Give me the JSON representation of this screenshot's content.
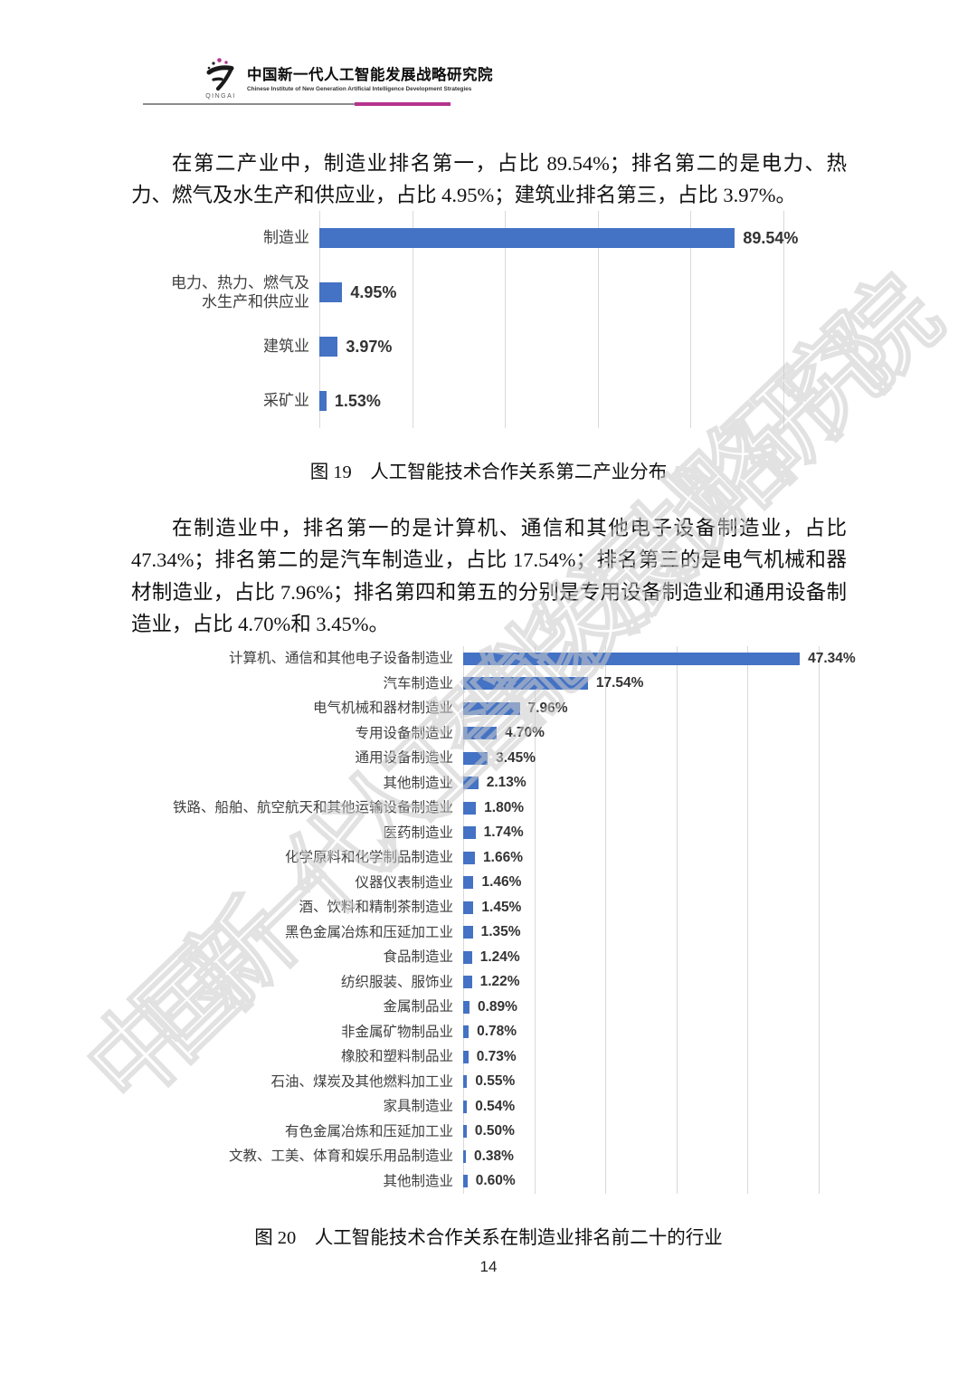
{
  "header": {
    "logo_word": "QINGAI",
    "org_cn": "中国新一代人工智能发展战略研究院",
    "org_en": "Chinese Institute of New Generation Artificial Intelligence Development Strategies",
    "accent_color": "#b5338f"
  },
  "watermark": {
    "text": "中国新一代人工智能发展战略研究院"
  },
  "body": {
    "paragraph1": "在第二产业中，制造业排名第一，占比 89.54%；排名第二的是电力、热力、燃气及水生产和供应业，占比 4.95%；建筑业排名第三，占比 3.97%。",
    "paragraph2": "在制造业中，排名第一的是计算机、通信和其他电子设备制造业，占比 47.34%；排名第二的是汽车制造业，占比 17.54%；排名第三的是电气机械和器材制造业，占比 7.96%；排名第四和第五的分别是专用设备制造业和通用设备制造业，占比 4.70%和 3.45%。"
  },
  "figures": {
    "fig19_caption": "图 19　人工智能技术合作关系第二产业分布",
    "fig20_caption": "图 20　人工智能技术合作关系在制造业排名前二十的行业"
  },
  "page": {
    "number": "14"
  },
  "chart_data": [
    {
      "type": "bar",
      "orientation": "horizontal",
      "figure": "图 19",
      "title": "人工智能技术合作关系第二产业分布",
      "categories": [
        "制造业",
        "电力、热力、燃气及\n水生产和供应业",
        "建筑业",
        "采矿业"
      ],
      "values": [
        89.54,
        4.95,
        3.97,
        1.53
      ],
      "labels": [
        "89.54%",
        "4.95%",
        "3.97%",
        "1.53%"
      ],
      "xlim": [
        0,
        100
      ],
      "grid_step": 20,
      "grid": true,
      "legend": "none",
      "bar_color": "#4472c4",
      "gridline_color": "#d9d9d9"
    },
    {
      "type": "bar",
      "orientation": "horizontal",
      "figure": "图 20",
      "title": "人工智能技术合作关系在制造业排名前二十的行业",
      "categories": [
        "计算机、通信和其他电子设备制造业",
        "汽车制造业",
        "电气机械和器材制造业",
        "专用设备制造业",
        "通用设备制造业",
        "其他制造业",
        "铁路、船舶、航空航天和其他运输设备制造业",
        "医药制造业",
        "化学原料和化学制品制造业",
        "仪器仪表制造业",
        "酒、饮料和精制茶制造业",
        "黑色金属冶炼和压延加工业",
        "食品制造业",
        "纺织服装、服饰业",
        "金属制品业",
        "非金属矿物制品业",
        "橡胶和塑料制品业",
        "石油、煤炭及其他燃料加工业",
        "家具制造业",
        "有色金属冶炼和压延加工业",
        "文教、工美、体育和娱乐用品制造业",
        "其他制造业"
      ],
      "values": [
        47.34,
        17.54,
        7.96,
        4.7,
        3.45,
        2.13,
        1.8,
        1.74,
        1.66,
        1.46,
        1.45,
        1.35,
        1.24,
        1.22,
        0.89,
        0.78,
        0.73,
        0.55,
        0.54,
        0.5,
        0.38,
        0.6
      ],
      "labels": [
        "47.34%",
        "17.54%",
        "7.96%",
        "4.70%",
        "3.45%",
        "2.13%",
        "1.80%",
        "1.74%",
        "1.66%",
        "1.46%",
        "1.45%",
        "1.35%",
        "1.24%",
        "1.22%",
        "0.89%",
        "0.78%",
        "0.73%",
        "0.55%",
        "0.54%",
        "0.50%",
        "0.38%",
        "0.60%"
      ],
      "xlim": [
        0,
        50
      ],
      "grid_step": 10,
      "grid": true,
      "legend": "none",
      "bar_color": "#4472c4",
      "gridline_color": "#d9d9d9"
    }
  ]
}
